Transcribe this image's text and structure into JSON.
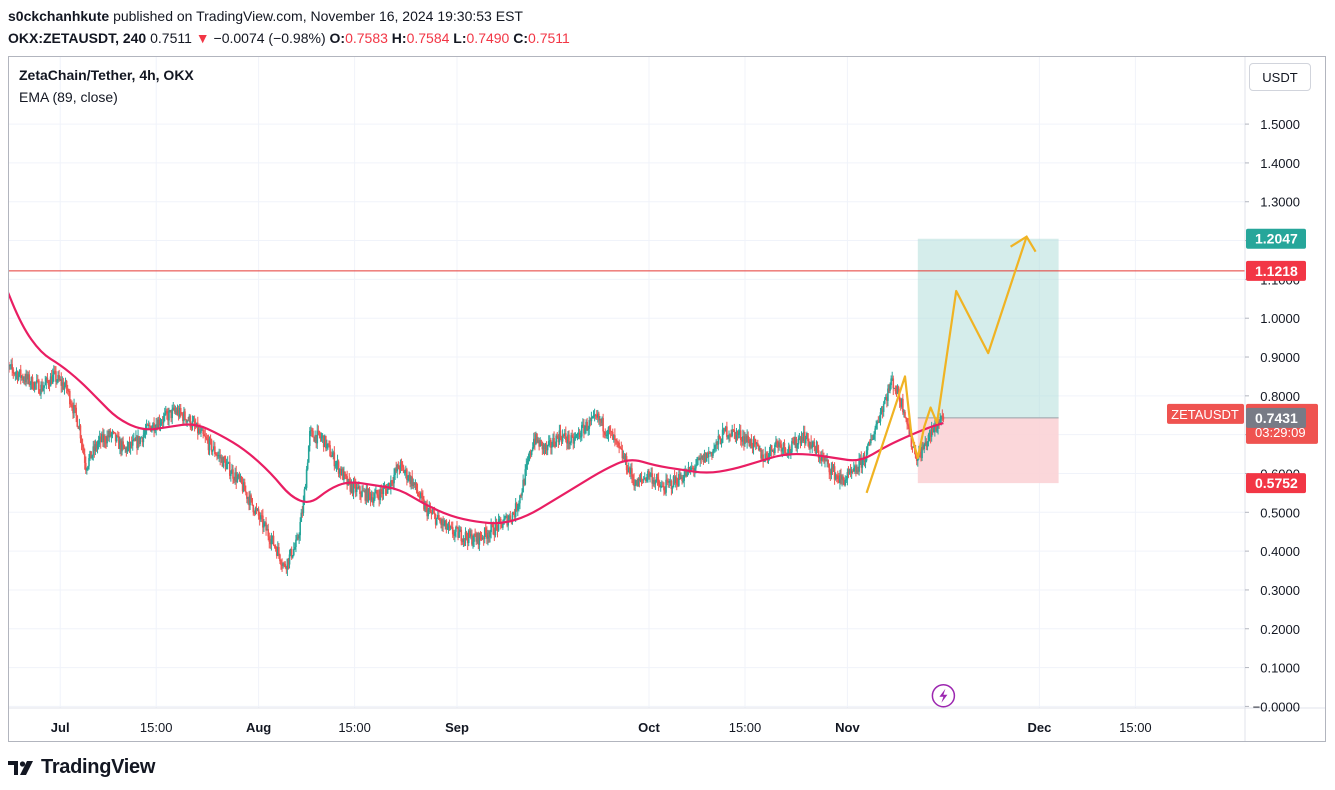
{
  "header": {
    "author": "s0ckchanhkute",
    "published": "published on TradingView.com, November 16, 2024 19:30:53 EST",
    "symbol": "OKX:ZETAUSDT, 240",
    "last": "0.7511",
    "change_arrow": "▼",
    "change": "−0.0074 (−0.98%)",
    "open_label": "O:",
    "open": "0.7583",
    "high_label": "H:",
    "high": "0.7584",
    "low_label": "L:",
    "low": "0.7490",
    "close_label": "C:",
    "close": "0.7511"
  },
  "legend": {
    "title": "ZetaChain/Tether, 4h, OKX",
    "indicator": "EMA (89, close)"
  },
  "currency": "USDT",
  "footer": {
    "brand": "TradingView"
  },
  "colors": {
    "up": "#26a69a",
    "down": "#ef5350",
    "ema": "#e91e63",
    "horizontal_line": "#e53935",
    "projection": "#f0b323",
    "target_zone": "#b2dfdb",
    "stop_zone": "#fbd3d6",
    "grid": "#f0f3fa"
  },
  "chart_data": {
    "type": "candlestick",
    "y_axis": {
      "ylim": [
        -0.01,
        1.58
      ],
      "ticks": [
        "1.5000",
        "1.4000",
        "1.3000",
        "1.2000",
        "1.1000",
        "1.0000",
        "0.9000",
        "0.8000",
        "0.7000",
        "0.6000",
        "0.5000",
        "0.4000",
        "0.3000",
        "0.2000",
        "0.1000",
        "−0.0000"
      ]
    },
    "x_axis": {
      "ticks": [
        {
          "label": "Jul",
          "bold": true
        },
        {
          "label": "15:00",
          "bold": false
        },
        {
          "label": "Aug",
          "bold": true
        },
        {
          "label": "15:00",
          "bold": false
        },
        {
          "label": "Sep",
          "bold": true
        },
        {
          "label": "Oct",
          "bold": true
        },
        {
          "label": "15:00",
          "bold": false
        },
        {
          "label": "Nov",
          "bold": true
        },
        {
          "label": "Dec",
          "bold": true
        },
        {
          "label": "15:00",
          "bold": false
        }
      ]
    },
    "price_path": [
      [
        "2024-06-22",
        0.88
      ],
      [
        "2024-06-24",
        0.86
      ],
      [
        "2024-06-26",
        0.84
      ],
      [
        "2024-06-28",
        0.82
      ],
      [
        "2024-06-30",
        0.85
      ],
      [
        "2024-07-02",
        0.82
      ],
      [
        "2024-07-04",
        0.72
      ],
      [
        "2024-07-05",
        0.62
      ],
      [
        "2024-07-07",
        0.68
      ],
      [
        "2024-07-09",
        0.7
      ],
      [
        "2024-07-11",
        0.66
      ],
      [
        "2024-07-13",
        0.68
      ],
      [
        "2024-07-15",
        0.72
      ],
      [
        "2024-07-17",
        0.74
      ],
      [
        "2024-07-19",
        0.76
      ],
      [
        "2024-07-21",
        0.74
      ],
      [
        "2024-07-23",
        0.7
      ],
      [
        "2024-07-25",
        0.66
      ],
      [
        "2024-07-27",
        0.62
      ],
      [
        "2024-07-29",
        0.58
      ],
      [
        "2024-07-31",
        0.52
      ],
      [
        "2024-08-02",
        0.46
      ],
      [
        "2024-08-04",
        0.4
      ],
      [
        "2024-08-05",
        0.36
      ],
      [
        "2024-08-07",
        0.42
      ],
      [
        "2024-08-08",
        0.52
      ],
      [
        "2024-08-09",
        0.7
      ],
      [
        "2024-08-11",
        0.69
      ],
      [
        "2024-08-13",
        0.63
      ],
      [
        "2024-08-15",
        0.57
      ],
      [
        "2024-08-17",
        0.55
      ],
      [
        "2024-08-19",
        0.54
      ],
      [
        "2024-08-21",
        0.56
      ],
      [
        "2024-08-23",
        0.62
      ],
      [
        "2024-08-25",
        0.58
      ],
      [
        "2024-08-27",
        0.51
      ],
      [
        "2024-08-29",
        0.48
      ],
      [
        "2024-08-31",
        0.45
      ],
      [
        "2024-09-02",
        0.44
      ],
      [
        "2024-09-04",
        0.43
      ],
      [
        "2024-09-06",
        0.45
      ],
      [
        "2024-09-08",
        0.47
      ],
      [
        "2024-09-10",
        0.5
      ],
      [
        "2024-09-11",
        0.55
      ],
      [
        "2024-09-13",
        0.69
      ],
      [
        "2024-09-15",
        0.66
      ],
      [
        "2024-09-17",
        0.7
      ],
      [
        "2024-09-19",
        0.68
      ],
      [
        "2024-09-21",
        0.72
      ],
      [
        "2024-09-23",
        0.74
      ],
      [
        "2024-09-25",
        0.7
      ],
      [
        "2024-09-27",
        0.64
      ],
      [
        "2024-09-29",
        0.57
      ],
      [
        "2024-10-01",
        0.6
      ],
      [
        "2024-10-03",
        0.56
      ],
      [
        "2024-10-05",
        0.58
      ],
      [
        "2024-10-07",
        0.6
      ],
      [
        "2024-10-09",
        0.63
      ],
      [
        "2024-10-11",
        0.66
      ],
      [
        "2024-10-13",
        0.71
      ],
      [
        "2024-10-15",
        0.7
      ],
      [
        "2024-10-17",
        0.68
      ],
      [
        "2024-10-19",
        0.64
      ],
      [
        "2024-10-21",
        0.68
      ],
      [
        "2024-10-23",
        0.66
      ],
      [
        "2024-10-25",
        0.7
      ],
      [
        "2024-10-27",
        0.66
      ],
      [
        "2024-10-29",
        0.62
      ],
      [
        "2024-10-31",
        0.58
      ],
      [
        "2024-11-02",
        0.6
      ],
      [
        "2024-11-04",
        0.65
      ],
      [
        "2024-11-06",
        0.75
      ],
      [
        "2024-11-08",
        0.84
      ],
      [
        "2024-11-10",
        0.76
      ],
      [
        "2024-11-11",
        0.68
      ],
      [
        "2024-11-12",
        0.64
      ],
      [
        "2024-11-14",
        0.7
      ],
      [
        "2024-11-16",
        0.7511
      ]
    ],
    "ema": [
      [
        "2024-06-22",
        1.1
      ],
      [
        "2024-06-25",
        0.98
      ],
      [
        "2024-06-28",
        0.91
      ],
      [
        "2024-07-01",
        0.88
      ],
      [
        "2024-07-04",
        0.84
      ],
      [
        "2024-07-07",
        0.79
      ],
      [
        "2024-07-10",
        0.74
      ],
      [
        "2024-07-14",
        0.71
      ],
      [
        "2024-07-18",
        0.72
      ],
      [
        "2024-07-22",
        0.73
      ],
      [
        "2024-07-26",
        0.7
      ],
      [
        "2024-07-30",
        0.66
      ],
      [
        "2024-08-03",
        0.6
      ],
      [
        "2024-08-06",
        0.54
      ],
      [
        "2024-08-09",
        0.52
      ],
      [
        "2024-08-12",
        0.56
      ],
      [
        "2024-08-15",
        0.58
      ],
      [
        "2024-08-19",
        0.57
      ],
      [
        "2024-08-23",
        0.56
      ],
      [
        "2024-08-27",
        0.52
      ],
      [
        "2024-08-31",
        0.49
      ],
      [
        "2024-09-04",
        0.475
      ],
      [
        "2024-09-08",
        0.47
      ],
      [
        "2024-09-12",
        0.49
      ],
      [
        "2024-09-16",
        0.53
      ],
      [
        "2024-09-20",
        0.57
      ],
      [
        "2024-09-24",
        0.61
      ],
      [
        "2024-09-28",
        0.64
      ],
      [
        "2024-10-02",
        0.62
      ],
      [
        "2024-10-06",
        0.61
      ],
      [
        "2024-10-10",
        0.6
      ],
      [
        "2024-10-14",
        0.61
      ],
      [
        "2024-10-18",
        0.63
      ],
      [
        "2024-10-22",
        0.65
      ],
      [
        "2024-10-26",
        0.65
      ],
      [
        "2024-10-30",
        0.64
      ],
      [
        "2024-11-03",
        0.63
      ],
      [
        "2024-11-07",
        0.67
      ],
      [
        "2024-11-11",
        0.7
      ],
      [
        "2024-11-14",
        0.72
      ],
      [
        "2024-11-16",
        0.73
      ]
    ],
    "horizontal_line": {
      "value": 1.1218,
      "label": "1.1218"
    },
    "position": {
      "entry": 0.7431,
      "target": 1.2047,
      "stop": 0.5752,
      "start_date": "2024-11-12",
      "end_date": "2024-12-04"
    },
    "projection_path": [
      [
        "2024-11-04",
        0.55
      ],
      [
        "2024-11-10",
        0.85
      ],
      [
        "2024-11-11",
        0.7
      ],
      [
        "2024-11-12",
        0.64
      ],
      [
        "2024-11-13",
        0.72
      ],
      [
        "2024-11-14",
        0.77
      ],
      [
        "2024-11-15",
        0.73
      ],
      [
        "2024-11-18",
        1.07
      ],
      [
        "2024-11-23",
        0.91
      ],
      [
        "2024-11-29",
        1.21
      ]
    ],
    "price_labels": [
      {
        "text": "1.2047",
        "value": 1.2047,
        "color": "#26a69a"
      },
      {
        "text": "1.1218",
        "value": 1.1218,
        "color": "#f23645"
      },
      {
        "text": "0.7511",
        "sub": "03:29:09",
        "value": 0.7511,
        "color": "#ef5350",
        "tag": "ZETAUSDT"
      },
      {
        "text": "0.7431",
        "value": 0.7431,
        "color": "#787b86"
      },
      {
        "text": "0.5752",
        "value": 0.5752,
        "color": "#f23645"
      }
    ]
  }
}
